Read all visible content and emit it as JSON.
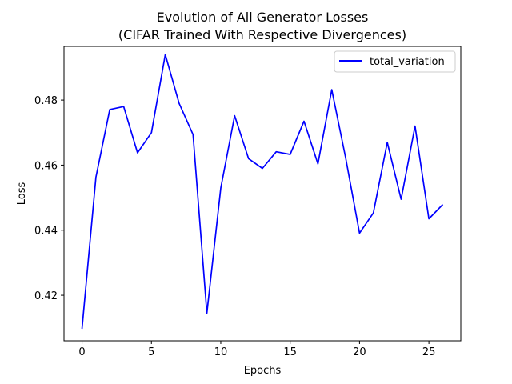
{
  "chart_data": {
    "type": "line",
    "title": "Evolution of All Generator Losses\n(CIFAR Trained With Respective Divergences)",
    "title_lines": [
      "Evolution of All Generator Losses",
      "(CIFAR Trained With Respective Divergences)"
    ],
    "xlabel": "Epochs",
    "ylabel": "Loss",
    "xlim": [
      -1.3,
      27.3
    ],
    "ylim": [
      0.406,
      0.4965
    ],
    "xticks": [
      0,
      5,
      10,
      15,
      20,
      25
    ],
    "yticks": [
      0.42,
      0.44,
      0.46,
      0.48
    ],
    "ytick_labels": [
      "0.42",
      "0.44",
      "0.46",
      "0.48"
    ],
    "grid": false,
    "legend_position": "top-right",
    "series": [
      {
        "name": "total_variation",
        "color": "#0000ff",
        "x": [
          0,
          1,
          2,
          3,
          4,
          5,
          6,
          7,
          8,
          9,
          10,
          11,
          12,
          13,
          14,
          15,
          16,
          17,
          18,
          19,
          20,
          21,
          22,
          23,
          24,
          25,
          26
        ],
        "y": [
          0.4097,
          0.4563,
          0.4771,
          0.478,
          0.4638,
          0.47,
          0.494,
          0.479,
          0.4694,
          0.4145,
          0.453,
          0.4752,
          0.462,
          0.459,
          0.4641,
          0.4633,
          0.4735,
          0.4604,
          0.4832,
          0.4622,
          0.4391,
          0.4453,
          0.467,
          0.4495,
          0.472,
          0.4435,
          0.4479
        ]
      }
    ]
  }
}
